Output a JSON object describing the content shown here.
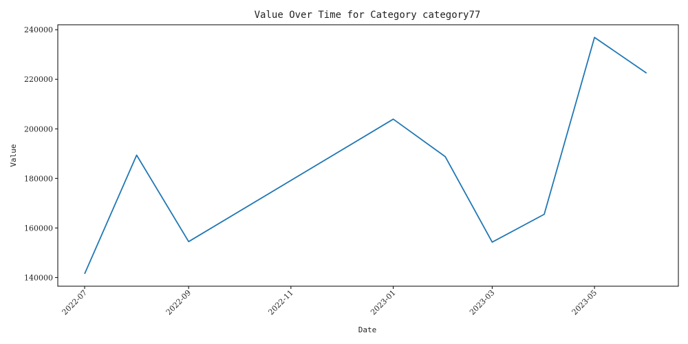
{
  "chart_data": {
    "type": "line",
    "title": "Value Over Time for Category category77",
    "xlabel": "Date",
    "ylabel": "Value",
    "x_axis_type": "date",
    "x_range": [
      "2022-06-15",
      "2023-06-20"
    ],
    "ylim": [
      136500,
      242000
    ],
    "x_ticks": [
      {
        "date": "2022-07-01",
        "label": "2022-07"
      },
      {
        "date": "2022-09-01",
        "label": "2022-09"
      },
      {
        "date": "2022-11-01",
        "label": "2022-11"
      },
      {
        "date": "2023-01-01",
        "label": "2023-01"
      },
      {
        "date": "2023-03-01",
        "label": "2023-03"
      },
      {
        "date": "2023-05-01",
        "label": "2023-05"
      }
    ],
    "y_ticks": [
      140000,
      160000,
      180000,
      200000,
      220000,
      240000
    ],
    "grid": false,
    "series": [
      {
        "color": "#1f77b4",
        "x": [
          "2022-07-01",
          "2022-08-01",
          "2022-09-01",
          "2023-01-01",
          "2023-02-01",
          "2023-03-01",
          "2023-04-01",
          "2023-05-01",
          "2023-06-01"
        ],
        "y": [
          141500,
          189400,
          154500,
          203900,
          188800,
          154300,
          165500,
          236900,
          222500
        ]
      }
    ]
  }
}
